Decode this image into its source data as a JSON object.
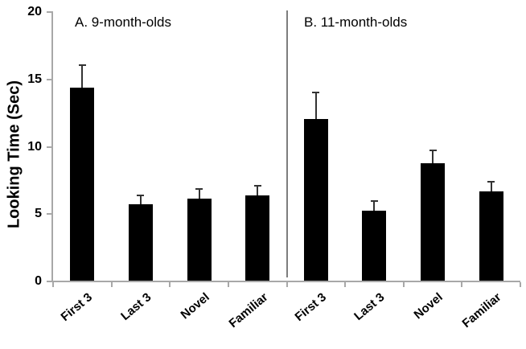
{
  "chart_data": {
    "type": "bar",
    "title": "",
    "ylabel": "Looking Time (Sec)",
    "xlabel": "",
    "ylim": [
      0,
      20
    ],
    "yticks": [
      "0",
      "5",
      "10",
      "15",
      "20"
    ],
    "grid": false,
    "legend": false,
    "bar_color": "#000000",
    "axis_color": "#a8a8a8",
    "divider_color": "#7d7d7d",
    "error_bar_color": "#333333",
    "text_color": "#000000",
    "panels": [
      {
        "label": "A. 9-month-olds",
        "categories": [
          "First 3",
          "Last 3",
          "Novel",
          "Familiar"
        ],
        "values": [
          14.3,
          5.7,
          6.1,
          6.3
        ],
        "errors": [
          1.7,
          0.6,
          0.7,
          0.75
        ]
      },
      {
        "label": "B. 11-month-olds",
        "categories": [
          "First 3",
          "Last 3",
          "Novel",
          "Familiar"
        ],
        "values": [
          12.0,
          5.2,
          8.7,
          6.6
        ],
        "errors": [
          2.0,
          0.7,
          1.0,
          0.75
        ]
      }
    ]
  }
}
